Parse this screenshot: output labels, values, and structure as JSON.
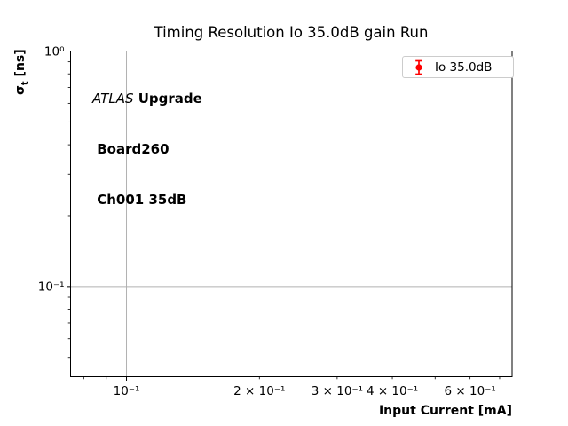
{
  "title": "Timing Resolution Io 35.0dB gain Run",
  "annotation": {
    "atlas": "ATLAS",
    "line1_rest": " Upgrade",
    "line2": " Board260",
    "line3": " Ch001 35dB"
  },
  "legend": {
    "label": "Io 35.0dB",
    "marker_color": "#ff0000"
  },
  "axis_labels": {
    "y_sigma": "σ",
    "y_sub": "t",
    "y_rest": " [ns]",
    "x": "Input Current [mA]"
  },
  "colors": {
    "grid": "#b0b0b0",
    "axis": "#000000",
    "background": "#ffffff",
    "marker": "#ff0000"
  },
  "chart_data": {
    "type": "scatter",
    "title": "Timing Resolution Io 35.0dB gain Run",
    "xlabel": "Input Current [mA]",
    "ylabel": "σ_t [ns]",
    "xscale": "log",
    "yscale": "log",
    "xlim": [
      0.0747,
      0.747
    ],
    "ylim": [
      0.0414,
      1.0
    ],
    "grid": "major",
    "legend_position": "upper right",
    "annotations": [
      "ATLAS Upgrade",
      "Board260",
      "Ch001 35dB"
    ],
    "x_ticks": {
      "major": [
        {
          "v": 0.1,
          "label": "10⁻¹"
        }
      ],
      "minor": [
        {
          "v": 0.08,
          "label": ""
        },
        {
          "v": 0.09,
          "label": ""
        },
        {
          "v": 0.2,
          "label": "2 × 10⁻¹"
        },
        {
          "v": 0.3,
          "label": "3 × 10⁻¹"
        },
        {
          "v": 0.4,
          "label": "4 × 10⁻¹"
        },
        {
          "v": 0.5,
          "label": ""
        },
        {
          "v": 0.6,
          "label": "6 × 10⁻¹"
        },
        {
          "v": 0.7,
          "label": ""
        }
      ]
    },
    "y_ticks": {
      "major": [
        {
          "v": 1.0,
          "label": "10⁰"
        },
        {
          "v": 0.1,
          "label": "10⁻¹"
        }
      ],
      "minor": [
        {
          "v": 0.9
        },
        {
          "v": 0.8
        },
        {
          "v": 0.7
        },
        {
          "v": 0.6
        },
        {
          "v": 0.5
        },
        {
          "v": 0.4
        },
        {
          "v": 0.3
        },
        {
          "v": 0.2
        },
        {
          "v": 0.09
        },
        {
          "v": 0.08
        },
        {
          "v": 0.07
        },
        {
          "v": 0.06
        },
        {
          "v": 0.05
        }
      ]
    },
    "series": [
      {
        "name": "Io 35.0dB",
        "color": "#ff0000",
        "marker": "circle-errorbar",
        "x": [],
        "y": [],
        "yerr": []
      }
    ]
  }
}
